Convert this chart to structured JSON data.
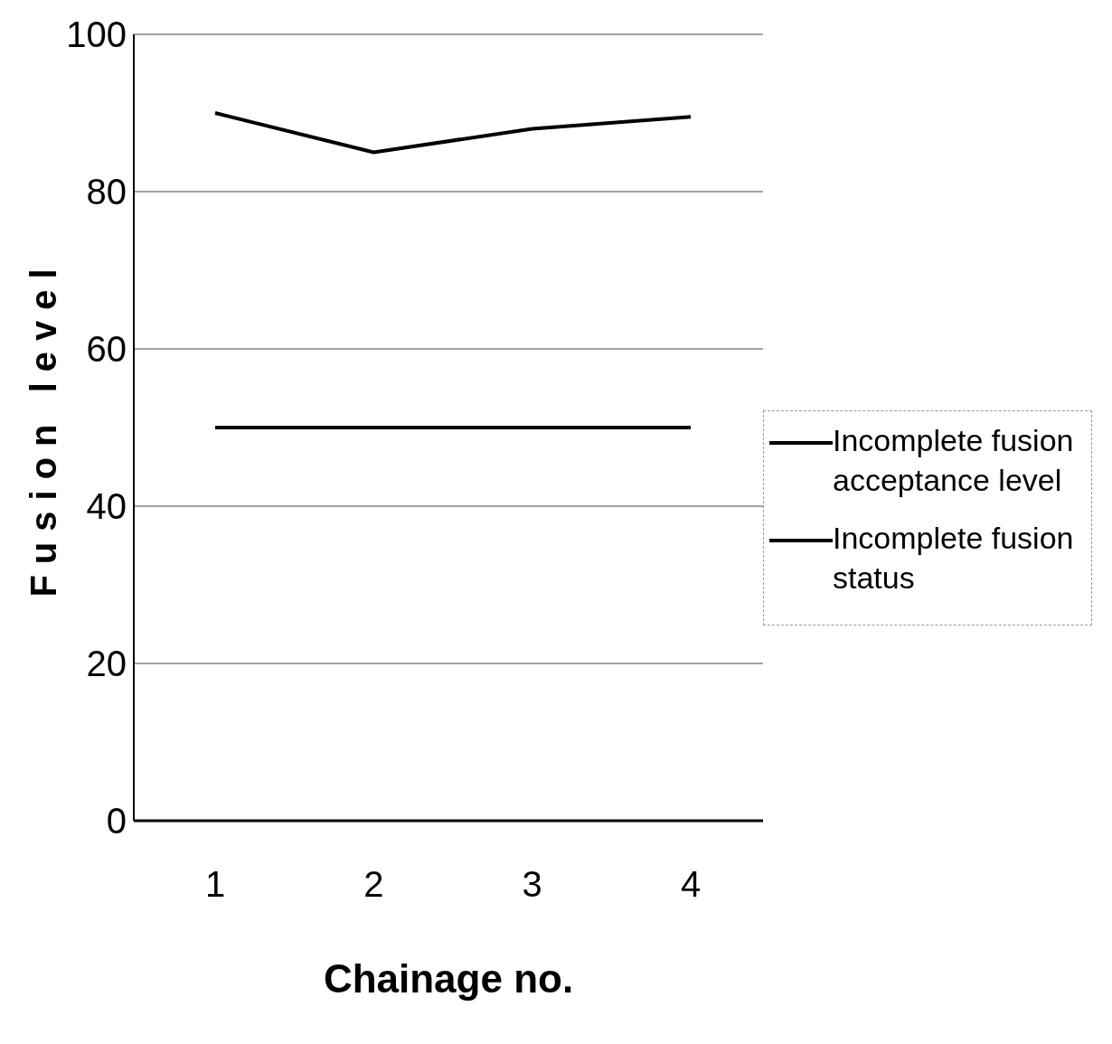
{
  "chart_data": {
    "type": "line",
    "xlabel": "Chainage no.",
    "ylabel": "Fusion level",
    "categories": [
      "1",
      "2",
      "3",
      "4"
    ],
    "series": [
      {
        "name": "Incomplete fusion acceptance level",
        "color": "#000000",
        "values": [
          50,
          50,
          50,
          50
        ]
      },
      {
        "name": "Incomplete fusion status",
        "color": "#000000",
        "values": [
          90,
          85,
          88,
          89.5
        ]
      }
    ],
    "ylim": [
      0,
      100
    ],
    "yticks": [
      0,
      20,
      40,
      60,
      80,
      100
    ],
    "grid": "y",
    "legend": "right",
    "marker": "none",
    "line_style": "solid"
  }
}
